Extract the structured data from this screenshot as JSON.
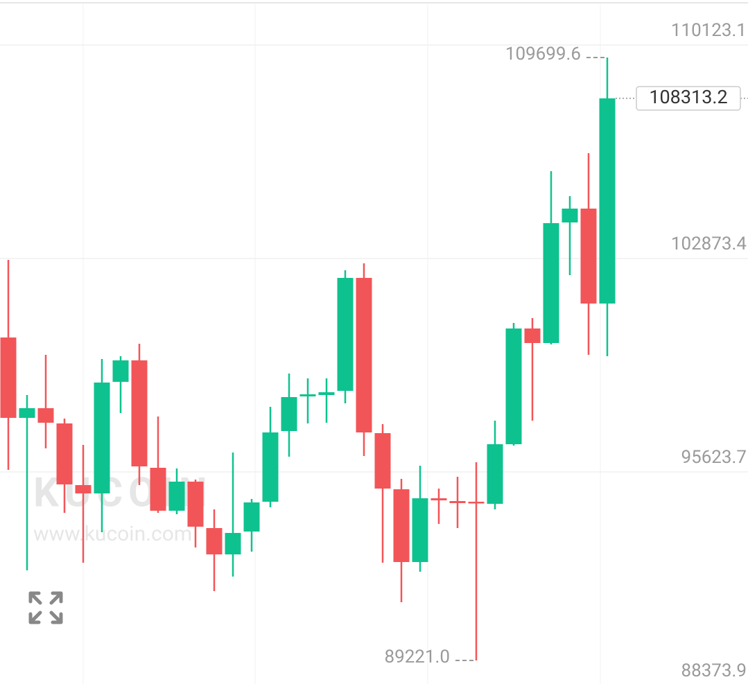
{
  "chart_data": {
    "type": "candlestick",
    "categories": [
      null,
      null,
      null,
      null,
      null,
      null,
      null,
      null,
      null,
      null,
      null,
      null,
      null,
      null,
      null,
      null,
      null,
      null,
      null,
      null,
      null,
      null,
      null,
      null,
      null,
      null,
      null,
      null,
      null,
      null,
      null,
      null,
      null
    ],
    "open": [
      100190,
      97460,
      97789,
      97271,
      95177,
      94894,
      98684,
      99413,
      95765,
      94306,
      95294,
      93717,
      92823,
      93599,
      94612,
      97012,
      98189,
      98236,
      98378,
      102214,
      96942,
      95035,
      92564,
      94729,
      94635,
      94612,
      94541,
      96565,
      100496,
      100002,
      104097,
      104568,
      101343
    ],
    "high": [
      102826,
      98236,
      99602,
      97436,
      96542,
      99460,
      99555,
      99978,
      97507,
      95741,
      95365,
      94353,
      96283,
      94706,
      97836,
      98966,
      98801,
      98801,
      102473,
      102709,
      97248,
      95388,
      95836,
      95059,
      95459,
      95953,
      97366,
      100684,
      100849,
      105839,
      104992,
      106451,
      109699.6
    ],
    "low": [
      95694,
      92281,
      96424,
      94235,
      92540,
      93576,
      97624,
      95177,
      94235,
      94188,
      93058,
      91575,
      92070,
      92917,
      94423,
      96142,
      97271,
      97295,
      97954,
      96165,
      92540,
      91199,
      92234,
      93858,
      93717,
      89221.0,
      94353,
      96518,
      97366,
      99955,
      102309,
      99602,
      99555
    ],
    "close": [
      97460,
      97789,
      97295,
      95200,
      94894,
      98660,
      99413,
      95812,
      94306,
      95294,
      93764,
      92823,
      93552,
      94588,
      96965,
      98166,
      98260,
      98331,
      102214,
      96965,
      95059,
      92564,
      94729,
      94659,
      94565,
      94565,
      96565,
      100496,
      100002,
      104074,
      104568,
      101343,
      108313.2
    ],
    "up_color": "#0ec28f",
    "down_color": "#f25558",
    "ylim": [
      88421,
      111653
    ],
    "yticks": [
      110123.1,
      102873.4,
      95623.7,
      88373.9
    ],
    "grid": true,
    "annotations": [
      {
        "value": 109699.6,
        "label": "109699.6",
        "kind": "high"
      },
      {
        "value": 89221.0,
        "label": "89221.0",
        "kind": "low"
      }
    ],
    "last_price": 108313.2,
    "watermark": {
      "brand": "KUCOIN",
      "url": "www.kucoin.com"
    }
  }
}
